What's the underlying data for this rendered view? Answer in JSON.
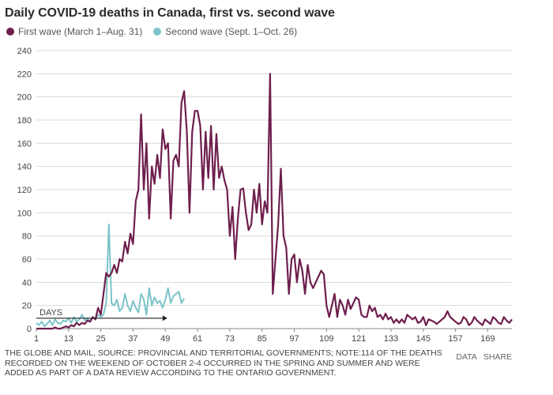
{
  "chart_data": {
    "type": "line",
    "title": "Daily COVID-19 deaths in Canada, first vs. second wave",
    "xlabel": "",
    "ylabel": "",
    "xlim": [
      1,
      178
    ],
    "ylim": [
      0,
      240
    ],
    "yticks": [
      0,
      20,
      40,
      60,
      80,
      100,
      120,
      140,
      160,
      180,
      200,
      220,
      240
    ],
    "xticks": [
      1,
      13,
      25,
      37,
      49,
      61,
      73,
      85,
      97,
      109,
      121,
      133,
      145,
      157,
      169
    ],
    "grid": true,
    "legend_position": "top-left",
    "annotation": "DAYS",
    "series": [
      {
        "name": "First wave (March 1–Aug. 31)",
        "color": "#6e1f4d",
        "x": [
          1,
          2,
          3,
          4,
          5,
          6,
          7,
          8,
          9,
          10,
          11,
          12,
          13,
          14,
          15,
          16,
          17,
          18,
          19,
          20,
          21,
          22,
          23,
          24,
          25,
          26,
          27,
          28,
          29,
          30,
          31,
          32,
          33,
          34,
          35,
          36,
          37,
          38,
          39,
          40,
          41,
          42,
          43,
          44,
          45,
          46,
          47,
          48,
          49,
          50,
          51,
          52,
          53,
          54,
          55,
          56,
          57,
          58,
          59,
          60,
          61,
          62,
          63,
          64,
          65,
          66,
          67,
          68,
          69,
          70,
          71,
          72,
          73,
          74,
          75,
          76,
          77,
          78,
          79,
          80,
          81,
          82,
          83,
          84,
          85,
          86,
          87,
          88,
          89,
          90,
          91,
          92,
          93,
          94,
          95,
          96,
          97,
          98,
          99,
          100,
          101,
          102,
          103,
          104,
          105,
          106,
          107,
          108,
          109,
          110,
          111,
          112,
          113,
          114,
          115,
          116,
          117,
          118,
          119,
          120,
          121,
          122,
          123,
          124,
          125,
          126,
          127,
          128,
          129,
          130,
          131,
          132,
          133,
          134,
          135,
          136,
          137,
          138,
          139,
          140,
          141,
          142,
          143,
          144,
          145,
          146,
          147,
          148,
          149,
          150,
          151,
          152,
          153,
          154,
          155,
          156,
          157,
          158,
          159,
          160,
          161,
          162,
          163,
          164,
          165,
          166,
          167,
          168,
          169,
          170,
          171,
          172,
          173,
          174,
          175,
          176,
          177,
          178
        ],
        "values": [
          0,
          0,
          0,
          0,
          0,
          0,
          0,
          1,
          0,
          0,
          1,
          2,
          1,
          3,
          2,
          5,
          3,
          5,
          4,
          7,
          6,
          10,
          8,
          18,
          12,
          30,
          48,
          45,
          48,
          55,
          48,
          60,
          58,
          75,
          65,
          82,
          73,
          110,
          120,
          185,
          120,
          160,
          95,
          140,
          125,
          150,
          130,
          172,
          155,
          160,
          95,
          145,
          150,
          140,
          195,
          205,
          170,
          100,
          170,
          188,
          188,
          175,
          120,
          170,
          130,
          175,
          120,
          168,
          130,
          140,
          128,
          120,
          80,
          105,
          60,
          95,
          120,
          121,
          100,
          85,
          90,
          120,
          100,
          125,
          90,
          110,
          100,
          220,
          30,
          60,
          90,
          138,
          80,
          70,
          30,
          60,
          64,
          40,
          60,
          50,
          30,
          55,
          40,
          35,
          40,
          45,
          50,
          47,
          20,
          10,
          20,
          30,
          10,
          25,
          20,
          12,
          25,
          17,
          22,
          27,
          25,
          12,
          10,
          10,
          20,
          15,
          18,
          10,
          12,
          8,
          13,
          8,
          10,
          5,
          8,
          5,
          8,
          5,
          12,
          10,
          8,
          10,
          5,
          6,
          10,
          3,
          8,
          7,
          6,
          4,
          6,
          8,
          10,
          15,
          10,
          8,
          6,
          4,
          5,
          10,
          8,
          3,
          5,
          10,
          7,
          5,
          3,
          8,
          6,
          4,
          10,
          8,
          5,
          4,
          10,
          7,
          5,
          8
        ]
      },
      {
        "name": "Second wave (Sept. 1–Oct. 26)",
        "color": "#7cc4c9",
        "x": [
          1,
          2,
          3,
          4,
          5,
          6,
          7,
          8,
          9,
          10,
          11,
          12,
          13,
          14,
          15,
          16,
          17,
          18,
          19,
          20,
          21,
          22,
          23,
          24,
          25,
          26,
          27,
          28,
          29,
          30,
          31,
          32,
          33,
          34,
          35,
          36,
          37,
          38,
          39,
          40,
          41,
          42,
          43,
          44,
          45,
          46,
          47,
          48,
          49,
          50,
          51,
          52,
          53,
          54,
          55,
          56
        ],
        "values": [
          5,
          3,
          6,
          2,
          4,
          7,
          3,
          8,
          5,
          4,
          7,
          6,
          9,
          5,
          10,
          6,
          8,
          12,
          7,
          9,
          6,
          10,
          8,
          12,
          10,
          12,
          22,
          90,
          22,
          20,
          25,
          15,
          18,
          30,
          20,
          15,
          24,
          18,
          14,
          30,
          25,
          12,
          35,
          20,
          27,
          22,
          24,
          18,
          25,
          35,
          22,
          28,
          30,
          32,
          22,
          26
        ]
      }
    ]
  },
  "header": {
    "title": "Daily COVID-19 deaths in Canada, first vs. second wave",
    "legend": [
      {
        "label": "First wave (March 1–Aug. 31)",
        "color": "#6e1f4d"
      },
      {
        "label": "Second wave (Sept. 1–Oct. 26)",
        "color": "#7cc4c9"
      }
    ]
  },
  "footer": {
    "source": "THE GLOBE AND MAIL, SOURCE: PROVINCIAL AND TERRITORIAL GOVERNMENTS; NOTE:114 OF THE DEATHS RECORDED ON THE WEEKEND OF OCTOBER 2-4 OCCURRED IN THE SPRING AND SUMMER AND WERE ADDED AS PART OF A DATA REVIEW ACCORDING TO THE ONTARIO GOVERNMENT.",
    "data_label": "DATA",
    "share_label": "SHARE"
  }
}
